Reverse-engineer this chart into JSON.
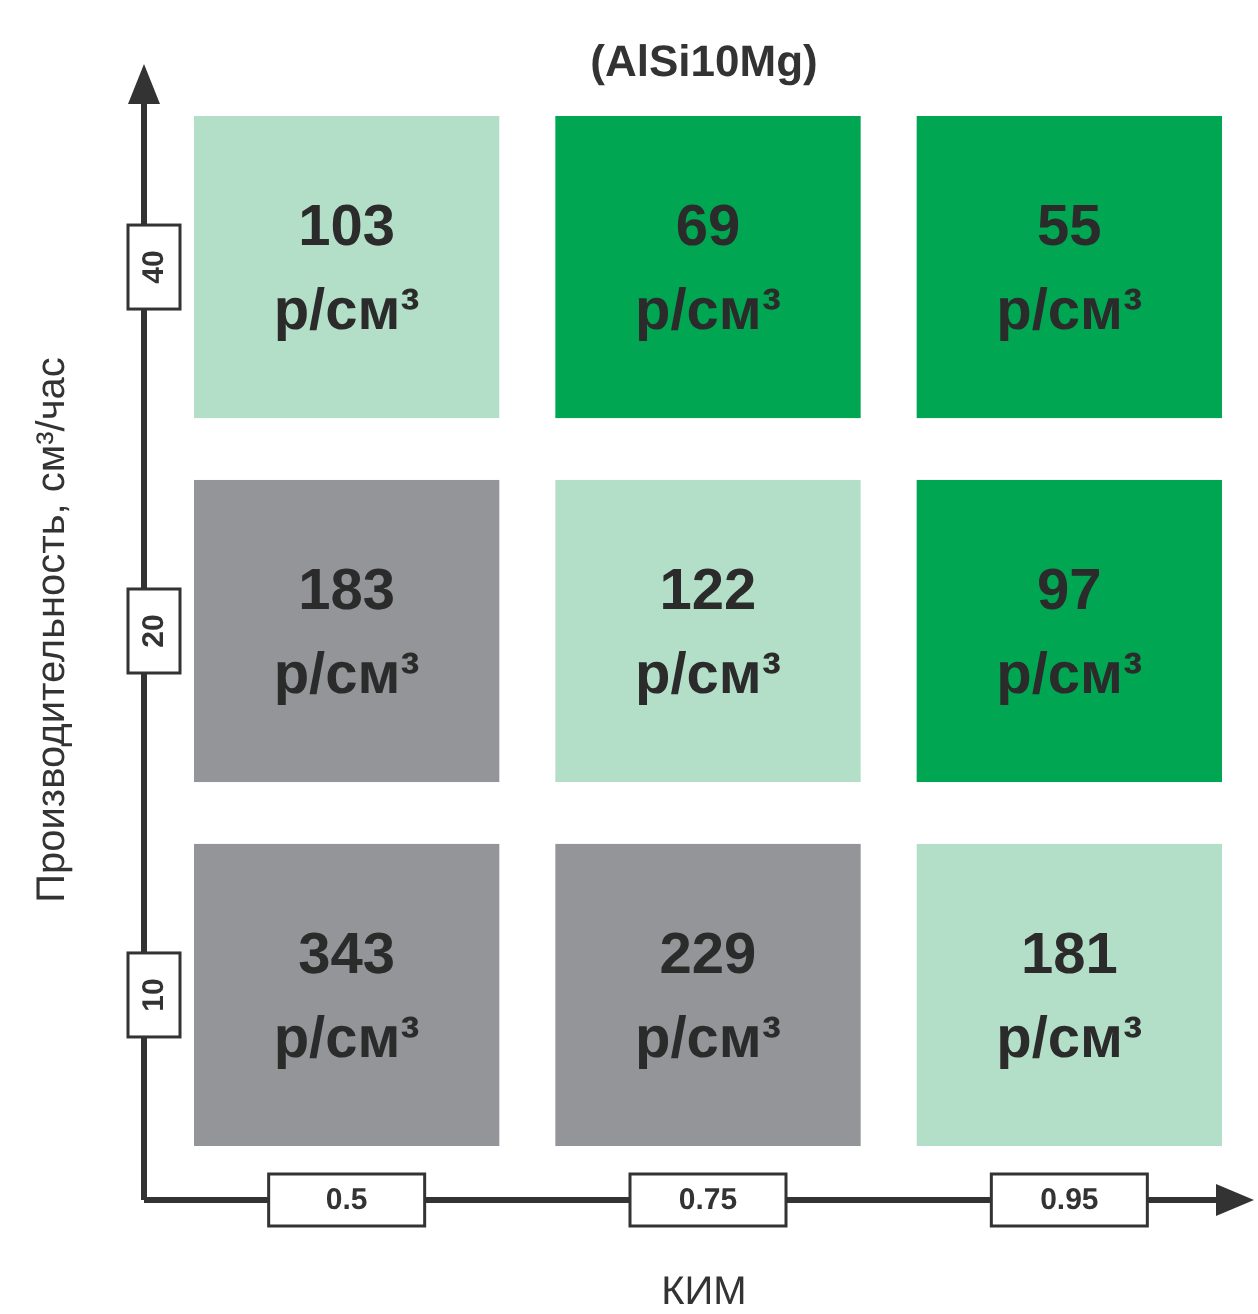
{
  "chart_data": {
    "type": "heatmap",
    "title": "(AlSi10Mg)",
    "xlabel": "КИМ",
    "ylabel": "Производительность, см³/час",
    "categories": [
      "0.5",
      "0.75",
      "0.95"
    ],
    "y_categories": [
      "40",
      "20",
      "10"
    ],
    "cells": [
      [
        103,
        69,
        55
      ],
      [
        183,
        122,
        97
      ],
      [
        343,
        229,
        181
      ]
    ],
    "cell_labels": [
      [
        "103 р/см³",
        "69 р/см³",
        "55 р/см³"
      ],
      [
        "183 р/см³",
        "122 р/см³",
        "97 р/см³"
      ],
      [
        "343 р/см³",
        "229 р/см³",
        "181 р/см³"
      ]
    ],
    "colors": [
      [
        "#b3dfc8",
        "#00a651",
        "#00a651"
      ],
      [
        "#939598",
        "#b3dfc8",
        "#00a651"
      ],
      [
        "#939598",
        "#939598",
        "#b3dfc8"
      ]
    ]
  }
}
